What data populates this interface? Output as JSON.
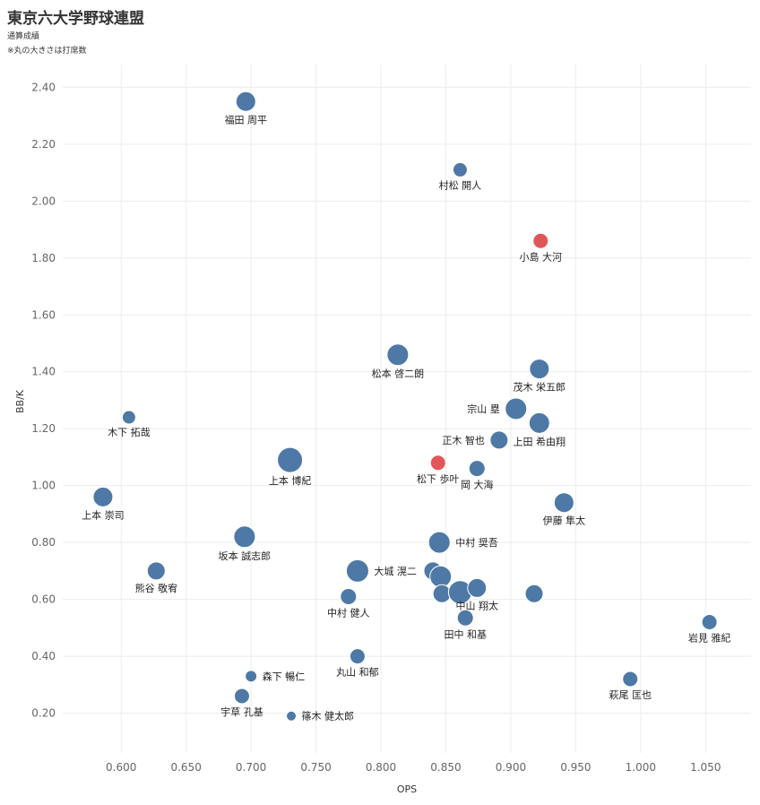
{
  "title": "東京六大学野球連盟",
  "subtitle": "通算成績",
  "note": "※丸の大きさは打席数",
  "colors": {
    "normal": "#4e79a7",
    "highlight": "#e15759",
    "grid": "#ececec",
    "axis_text": "#666666",
    "label_text": "#222222"
  },
  "chart_data": {
    "type": "scatter",
    "xlabel": "OPS",
    "ylabel": "BB/K",
    "xlim": [
      0.555,
      1.085
    ],
    "ylim": [
      0.06,
      2.48
    ],
    "xticks": [
      0.6,
      0.65,
      0.7,
      0.75,
      0.8,
      0.85,
      0.9,
      0.95,
      1.0,
      1.05
    ],
    "xtick_labels": [
      "0.600",
      "0.650",
      "0.700",
      "0.750",
      "0.800",
      "0.850",
      "0.900",
      "0.950",
      "1.000",
      "1.050"
    ],
    "yticks": [
      0.2,
      0.4,
      0.6,
      0.8,
      1.0,
      1.2,
      1.4,
      1.6,
      1.8,
      2.0,
      2.2,
      2.4
    ],
    "ytick_labels": [
      "0.20",
      "0.40",
      "0.60",
      "0.80",
      "1.00",
      "1.20",
      "1.40",
      "1.60",
      "1.80",
      "2.00",
      "2.20",
      "2.40"
    ],
    "size_encoding": "打席数",
    "points": [
      {
        "name": "福田 周平",
        "ops": 0.696,
        "bbk": 2.35,
        "size": 11,
        "highlight": false,
        "label_pos": "below"
      },
      {
        "name": "村松 開人",
        "ops": 0.861,
        "bbk": 2.11,
        "size": 8,
        "highlight": false,
        "label_pos": "below"
      },
      {
        "name": "小島 大河",
        "ops": 0.923,
        "bbk": 1.86,
        "size": 8.5,
        "highlight": true,
        "label_pos": "below"
      },
      {
        "name": "松本 啓二朗",
        "ops": 0.813,
        "bbk": 1.46,
        "size": 12,
        "highlight": false,
        "label_pos": "below"
      },
      {
        "name": "茂木 栄五郎",
        "ops": 0.922,
        "bbk": 1.41,
        "size": 11,
        "highlight": false,
        "label_pos": "below"
      },
      {
        "name": "宗山 塁",
        "ops": 0.904,
        "bbk": 1.27,
        "size": 12,
        "highlight": false,
        "label_pos": "left"
      },
      {
        "name": "上田 希由翔",
        "ops": 0.922,
        "bbk": 1.22,
        "size": 11.5,
        "highlight": false,
        "label_pos": "below"
      },
      {
        "name": "木下 拓哉",
        "ops": 0.606,
        "bbk": 1.24,
        "size": 7.5,
        "highlight": false,
        "label_pos": "below"
      },
      {
        "name": "正木 智也",
        "ops": 0.891,
        "bbk": 1.16,
        "size": 10,
        "highlight": false,
        "label_pos": "left"
      },
      {
        "name": "松下 歩叶",
        "ops": 0.844,
        "bbk": 1.08,
        "size": 8.5,
        "highlight": true,
        "label_pos": "below"
      },
      {
        "name": "岡 大海",
        "ops": 0.874,
        "bbk": 1.06,
        "size": 9,
        "highlight": false,
        "label_pos": "below"
      },
      {
        "name": "上本 博紀",
        "ops": 0.73,
        "bbk": 1.09,
        "size": 14,
        "highlight": false,
        "label_pos": "below"
      },
      {
        "name": "上本 崇司",
        "ops": 0.586,
        "bbk": 0.96,
        "size": 11,
        "highlight": false,
        "label_pos": "below"
      },
      {
        "name": "伊藤 隼太",
        "ops": 0.941,
        "bbk": 0.94,
        "size": 11,
        "highlight": false,
        "label_pos": "below"
      },
      {
        "name": "坂本 誠志郎",
        "ops": 0.695,
        "bbk": 0.82,
        "size": 12,
        "highlight": false,
        "label_pos": "below"
      },
      {
        "name": "中村 奨吾",
        "ops": 0.845,
        "bbk": 0.8,
        "size": 12,
        "highlight": false,
        "label_pos": "right"
      },
      {
        "name": "熊谷 敬宥",
        "ops": 0.627,
        "bbk": 0.7,
        "size": 10,
        "highlight": false,
        "label_pos": "below"
      },
      {
        "name": "大城 滉二",
        "ops": 0.782,
        "bbk": 0.7,
        "size": 12.5,
        "highlight": false,
        "label_pos": "right"
      },
      {
        "name": "",
        "ops": 0.84,
        "bbk": 0.7,
        "size": 10,
        "highlight": false,
        "label_pos": "none"
      },
      {
        "name": "",
        "ops": 0.846,
        "bbk": 0.68,
        "size": 12,
        "highlight": false,
        "label_pos": "none"
      },
      {
        "name": "",
        "ops": 0.847,
        "bbk": 0.62,
        "size": 10,
        "highlight": false,
        "label_pos": "none"
      },
      {
        "name": "",
        "ops": 0.861,
        "bbk": 0.625,
        "size": 13,
        "highlight": false,
        "label_pos": "none"
      },
      {
        "name": "中山 翔太",
        "ops": 0.874,
        "bbk": 0.64,
        "size": 10.5,
        "highlight": false,
        "label_pos": "below"
      },
      {
        "name": "",
        "ops": 0.918,
        "bbk": 0.62,
        "size": 10,
        "highlight": false,
        "label_pos": "none"
      },
      {
        "name": "中村 健人",
        "ops": 0.775,
        "bbk": 0.61,
        "size": 9,
        "highlight": false,
        "label_pos": "below"
      },
      {
        "name": "田中 和基",
        "ops": 0.865,
        "bbk": 0.535,
        "size": 9,
        "highlight": false,
        "label_pos": "below"
      },
      {
        "name": "岩見 雅紀",
        "ops": 1.053,
        "bbk": 0.52,
        "size": 8.5,
        "highlight": false,
        "label_pos": "below"
      },
      {
        "name": "丸山 和郁",
        "ops": 0.782,
        "bbk": 0.4,
        "size": 8.5,
        "highlight": false,
        "label_pos": "below"
      },
      {
        "name": "萩尾 匡也",
        "ops": 0.992,
        "bbk": 0.32,
        "size": 8.5,
        "highlight": false,
        "label_pos": "below"
      },
      {
        "name": "森下 暢仁",
        "ops": 0.7,
        "bbk": 0.33,
        "size": 6.5,
        "highlight": false,
        "label_pos": "right"
      },
      {
        "name": "宇草 孔基",
        "ops": 0.693,
        "bbk": 0.26,
        "size": 8.5,
        "highlight": false,
        "label_pos": "below"
      },
      {
        "name": "篠木 健太郎",
        "ops": 0.731,
        "bbk": 0.19,
        "size": 5.5,
        "highlight": false,
        "label_pos": "right"
      }
    ]
  }
}
